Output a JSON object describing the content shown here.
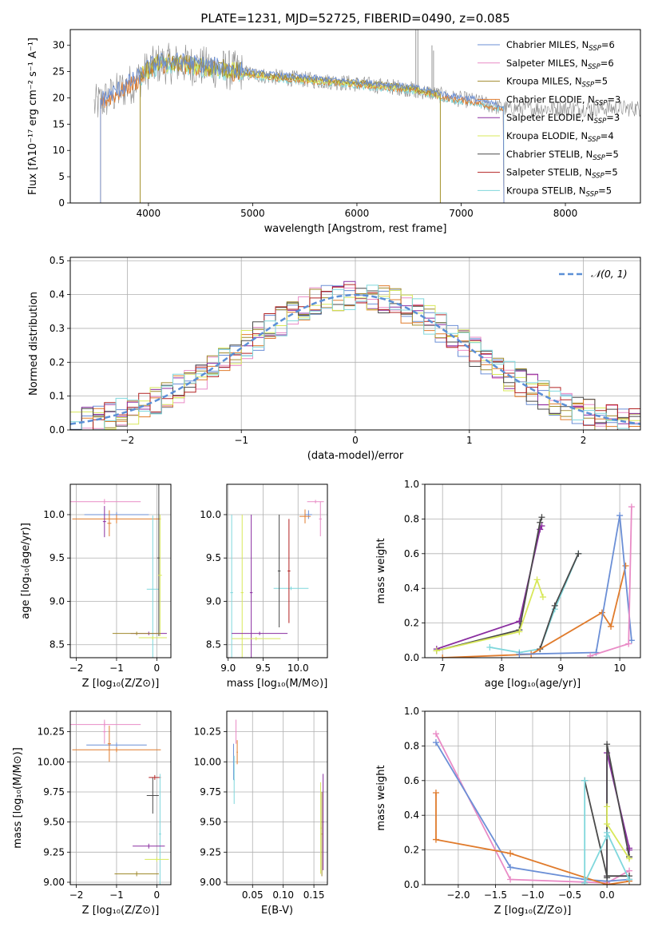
{
  "figure_title": "PLATE=1231, MJD=52725, FIBERID=0490, z=0.085",
  "colors": {
    "Chabrier MILES": "#6b8fd6",
    "Salpeter MILES": "#e98bc6",
    "Kroupa MILES": "#a08a2c",
    "Chabrier ELODIE": "#e07b2c",
    "Salpeter ELODIE": "#8a2ea0",
    "Kroupa ELODIE": "#d8e85a",
    "Chabrier STELIB": "#4a4a4a",
    "Salpeter STELIB": "#b22222",
    "Kroupa STELIB": "#7fd7dc"
  },
  "chart_data": [
    {
      "id": "spectrum",
      "type": "line",
      "title": "PLATE=1231, MJD=52725, FIBERID=0490, z=0.085",
      "xlabel": "wavelength [Angstrom, rest frame]",
      "ylabel": "Flux [fλ10⁻¹⁷ erg cm⁻² s⁻¹ A⁻¹]",
      "xlim": [
        3250,
        8720
      ],
      "ylim": [
        0,
        33
      ],
      "xticks": [
        4000,
        5000,
        6000,
        7000,
        8000
      ],
      "yticks": [
        0,
        5,
        10,
        15,
        20,
        25,
        30
      ],
      "legend_position": "top-right",
      "legend": [
        {
          "label": "Chabrier MILES, N",
          "sub": "SSP",
          "suffix": "=6",
          "color": "#6b8fd6"
        },
        {
          "label": "Salpeter MILES, N",
          "sub": "SSP",
          "suffix": "=6",
          "color": "#e98bc6"
        },
        {
          "label": "Kroupa MILES, N",
          "sub": "SSP",
          "suffix": "=5",
          "color": "#a08a2c"
        },
        {
          "label": "Chabrier ELODIE, N",
          "sub": "SSP",
          "suffix": "=3",
          "color": "#e07b2c"
        },
        {
          "label": "Salpeter ELODIE, N",
          "sub": "SSP",
          "suffix": "=3",
          "color": "#8a2ea0"
        },
        {
          "label": "Kroupa ELODIE, N",
          "sub": "SSP",
          "suffix": "=4",
          "color": "#d8e85a"
        },
        {
          "label": "Chabrier STELIB, N",
          "sub": "SSP",
          "suffix": "=5",
          "color": "#4a4a4a"
        },
        {
          "label": "Salpeter STELIB, N",
          "sub": "SSP",
          "suffix": "=5",
          "color": "#b22222"
        },
        {
          "label": "Kroupa STELIB, N",
          "sub": "SSP",
          "suffix": "=5",
          "color": "#7fd7dc"
        }
      ],
      "continuum": {
        "x": [
          3480,
          3700,
          3900,
          4000,
          4100,
          4300,
          4500,
          4700,
          4850,
          5000,
          5200,
          5500,
          5800,
          6100,
          6400,
          6560,
          6700,
          6900,
          7100,
          7300,
          7430
        ],
        "y": [
          18.5,
          21,
          23.5,
          25.5,
          26.5,
          26.5,
          26,
          25.5,
          25,
          24.5,
          24,
          23.5,
          23,
          22.5,
          22,
          21.5,
          21,
          20,
          19.5,
          18.5,
          18
        ]
      },
      "model_extents": [
        {
          "label": "MILES",
          "xmin": 3540,
          "xmax": 7410
        },
        {
          "label": "ELODIE",
          "xmin": 3920,
          "xmax": 6800
        },
        {
          "label": "STELIB",
          "xmin": 3250,
          "xmax": 8720
        }
      ]
    },
    {
      "id": "residuals",
      "type": "histogram",
      "xlabel": "(data-model)/error",
      "ylabel": "Normed distribution",
      "xlim": [
        -2.5,
        2.5
      ],
      "ylim": [
        0,
        0.51
      ],
      "xticks": [
        -2,
        -1,
        0,
        1,
        2
      ],
      "yticks": [
        0.0,
        0.1,
        0.2,
        0.3,
        0.4,
        0.5
      ],
      "reference_curve": {
        "name": "𝒩(0, 1)",
        "color": "#5b8fd6",
        "style": "dashed"
      },
      "bin_width": 0.1
    },
    {
      "id": "age-vs-Z",
      "type": "errorbar",
      "xlabel": "Z [log₁₀(Z/Z⊙)]",
      "ylabel": "age  [log₁₀(age/yr)]",
      "xlim": [
        -2.15,
        0.35
      ],
      "ylim": [
        8.35,
        10.35
      ],
      "xticks": [
        -2,
        -1,
        0
      ],
      "yticks": [
        8.5,
        9.0,
        9.5,
        10.0
      ],
      "points": [
        {
          "series": "Salpeter MILES",
          "x": -1.3,
          "y": 10.15,
          "xerr": 0.9,
          "yerr": 0.03
        },
        {
          "series": "Chabrier MILES",
          "x": -1.0,
          "y": 10.0,
          "xerr": 0.8,
          "yerr": 0.03
        },
        {
          "series": "Chabrier ELODIE",
          "x": -1.0,
          "y": 9.95,
          "xerr": 1.1,
          "yerr": 0.05
        },
        {
          "series": "Chabrier ELODIE",
          "x": -1.18,
          "y": 9.9,
          "xerr": 0.05,
          "yerr": 0.15
        },
        {
          "series": "Salpeter ELODIE",
          "x": -1.3,
          "y": 9.92,
          "xerr": 0.04,
          "yerr": 0.18
        },
        {
          "series": "Kroupa STELIB",
          "x": -0.1,
          "y": 9.14,
          "xerr": 0.15,
          "yerr": 0.85
        },
        {
          "series": "Chabrier STELIB",
          "x": 0.05,
          "y": 9.5,
          "xerr": 0.04,
          "yerr": 0.9
        },
        {
          "series": "Kroupa ELODIE",
          "x": 0.08,
          "y": 9.3,
          "xerr": 0.05,
          "yerr": 0.7
        },
        {
          "series": "Salpeter ELODIE",
          "x": -0.2,
          "y": 8.63,
          "xerr": 0.45,
          "yerr": 0.02
        },
        {
          "series": "Kroupa MILES",
          "x": -0.5,
          "y": 8.63,
          "xerr": 0.6,
          "yerr": 0.02
        },
        {
          "series": "Kroupa ELODIE",
          "x": -0.1,
          "y": 8.58,
          "xerr": 0.35,
          "yerr": 0.02
        }
      ]
    },
    {
      "id": "age-vs-mass",
      "type": "errorbar",
      "xlabel": "mass [log₁₀(M/M⊙)]",
      "xlim": [
        8.98,
        10.42
      ],
      "ylim": [
        8.35,
        10.35
      ],
      "xticks": [
        9.0,
        9.5,
        10.0
      ],
      "yticks": [
        8.5,
        9.0,
        9.5,
        10.0
      ],
      "points": [
        {
          "series": "Salpeter MILES",
          "x": 10.25,
          "y": 10.15,
          "xerr": 0.12,
          "yerr": 0.02
        },
        {
          "series": "Chabrier MILES",
          "x": 10.15,
          "y": 10.0,
          "xerr": 0.05,
          "yerr": 0.05
        },
        {
          "series": "Chabrier ELODIE",
          "x": 10.1,
          "y": 9.98,
          "xerr": 0.08,
          "yerr": 0.08
        },
        {
          "series": "Salpeter MILES",
          "x": 10.32,
          "y": 9.95,
          "xerr": 0.02,
          "yerr": 0.2
        },
        {
          "series": "Kroupa STELIB",
          "x": 9.9,
          "y": 9.15,
          "xerr": 0.25,
          "yerr": 0.02
        },
        {
          "series": "Chabrier STELIB",
          "x": 9.73,
          "y": 9.35,
          "xerr": 0.02,
          "yerr": 0.65
        },
        {
          "series": "Salpeter STELIB",
          "x": 9.87,
          "y": 9.35,
          "xerr": 0.02,
          "yerr": 0.6
        },
        {
          "series": "Kroupa STELIB",
          "x": 9.05,
          "y": 9.1,
          "xerr": 0.02,
          "yerr": 0.9
        },
        {
          "series": "Kroupa ELODIE",
          "x": 9.2,
          "y": 9.1,
          "xerr": 0.02,
          "yerr": 0.9
        },
        {
          "series": "Salpeter ELODIE",
          "x": 9.33,
          "y": 9.1,
          "xerr": 0.02,
          "yerr": 0.9
        },
        {
          "series": "Salpeter ELODIE",
          "x": 9.45,
          "y": 8.63,
          "xerr": 0.4,
          "yerr": 0.02
        },
        {
          "series": "Kroupa ELODIE",
          "x": 9.4,
          "y": 8.57,
          "xerr": 0.35,
          "yerr": 0.02
        }
      ]
    },
    {
      "id": "weight-vs-age",
      "type": "line",
      "xlabel": "age  [log₁₀(age/yr)]",
      "ylabel": "mass weight",
      "xlim": [
        6.7,
        10.35
      ],
      "ylim": [
        0,
        1.0
      ],
      "xticks": [
        7,
        8,
        9,
        10
      ],
      "yticks": [
        0.0,
        0.2,
        0.4,
        0.6,
        0.8,
        1.0
      ],
      "series": [
        {
          "name": "Salpeter ELODIE",
          "x": [
            6.9,
            8.3,
            8.65,
            8.68
          ],
          "y": [
            0.05,
            0.21,
            0.74,
            0.76
          ]
        },
        {
          "name": "Chabrier STELIB",
          "x": [
            6.9,
            8.3,
            8.65,
            8.68
          ],
          "y": [
            0.04,
            0.16,
            0.78,
            0.81
          ]
        },
        {
          "name": "Kroupa ELODIE",
          "x": [
            6.9,
            8.3,
            8.6,
            8.7
          ],
          "y": [
            0.04,
            0.15,
            0.45,
            0.35
          ]
        },
        {
          "name": "Kroupa STELIB",
          "x": [
            7.8,
            8.3,
            8.65,
            8.9,
            9.3
          ],
          "y": [
            0.06,
            0.03,
            0.05,
            0.28,
            0.6
          ]
        },
        {
          "name": "Chabrier STELIB",
          "x": [
            8.65,
            8.9,
            9.3
          ],
          "y": [
            0.05,
            0.3,
            0.6
          ]
        },
        {
          "name": "Chabrier ELODIE",
          "x": [
            7.0,
            8.5,
            9.7,
            9.85,
            10.1
          ],
          "y": [
            0.0,
            0.02,
            0.26,
            0.18,
            0.53
          ]
        },
        {
          "name": "Chabrier MILES",
          "x": [
            8.3,
            9.6,
            10.0,
            10.2
          ],
          "y": [
            0.02,
            0.03,
            0.82,
            0.1
          ]
        },
        {
          "name": "Salpeter MILES",
          "x": [
            9.5,
            10.15,
            10.2
          ],
          "y": [
            0.01,
            0.08,
            0.87
          ]
        }
      ]
    },
    {
      "id": "mass-vs-Z",
      "type": "errorbar",
      "xlabel": "Z [log₁₀(Z/Z⊙)]",
      "ylabel": "mass [log₁₀(M/M⊙)]",
      "xlim": [
        -2.15,
        0.35
      ],
      "ylim": [
        8.98,
        10.42
      ],
      "xticks": [
        -2,
        -1,
        0
      ],
      "yticks": [
        9.0,
        9.25,
        9.5,
        9.75,
        10.0,
        10.25
      ],
      "points": [
        {
          "series": "Salpeter MILES",
          "x": -1.3,
          "y": 10.31,
          "xerr": 0.9,
          "yerr": 0.02
        },
        {
          "series": "Chabrier MILES",
          "x": -1.0,
          "y": 10.14,
          "xerr": 0.75,
          "yerr": 0.02
        },
        {
          "series": "Chabrier ELODIE",
          "x": -1.0,
          "y": 10.1,
          "xerr": 1.1,
          "yerr": 0.02
        },
        {
          "series": "Chabrier ELODIE",
          "x": -1.18,
          "y": 10.15,
          "xerr": 0.04,
          "yerr": 0.15
        },
        {
          "series": "Salpeter MILES",
          "x": -1.3,
          "y": 10.25,
          "xerr": 0.04,
          "yerr": 0.1
        },
        {
          "series": "Chabrier STELIB",
          "x": -0.1,
          "y": 9.72,
          "xerr": 0.15,
          "yerr": 0.15
        },
        {
          "series": "Salpeter STELIB",
          "x": -0.05,
          "y": 9.87,
          "xerr": 0.15,
          "yerr": 0.02
        },
        {
          "series": "Kroupa STELIB",
          "x": 0.08,
          "y": 9.4,
          "xerr": 0.03,
          "yerr": 0.5
        },
        {
          "series": "Salpeter ELODIE",
          "x": -0.2,
          "y": 9.3,
          "xerr": 0.4,
          "yerr": 0.02
        },
        {
          "series": "Kroupa ELODIE",
          "x": 0.0,
          "y": 9.19,
          "xerr": 0.3,
          "yerr": 0.02
        },
        {
          "series": "Kroupa MILES",
          "x": -0.5,
          "y": 9.07,
          "xerr": 0.55,
          "yerr": 0.02
        }
      ]
    },
    {
      "id": "mass-vs-EBV",
      "type": "errorbar",
      "xlabel": "E(B-V)",
      "xlim": [
        0.008,
        0.172
      ],
      "ylim": [
        8.98,
        10.42
      ],
      "xticks": [
        0.05,
        0.1,
        0.15
      ],
      "yticks": [
        9.0,
        9.25,
        9.5,
        9.75,
        10.0,
        10.25
      ],
      "points": [
        {
          "series": "Salpeter MILES",
          "x": 0.023,
          "y": 10.25,
          "xerr": 0.001,
          "yerr": 0.1
        },
        {
          "series": "Chabrier ELODIE",
          "x": 0.025,
          "y": 10.08,
          "xerr": 0.001,
          "yerr": 0.1
        },
        {
          "series": "Chabrier MILES",
          "x": 0.019,
          "y": 10.0,
          "xerr": 0.001,
          "yerr": 0.15
        },
        {
          "series": "Kroupa STELIB",
          "x": 0.02,
          "y": 9.85,
          "xerr": 0.001,
          "yerr": 0.2
        },
        {
          "series": "Salpeter ELODIE",
          "x": 0.165,
          "y": 9.5,
          "xerr": 0.001,
          "yerr": 0.4
        },
        {
          "series": "Kroupa ELODIE",
          "x": 0.161,
          "y": 9.45,
          "xerr": 0.001,
          "yerr": 0.38
        },
        {
          "series": "Kroupa MILES",
          "x": 0.163,
          "y": 9.4,
          "xerr": 0.001,
          "yerr": 0.35
        }
      ]
    },
    {
      "id": "weight-vs-Z",
      "type": "line",
      "xlabel": "Z [log₁₀(Z/Z⊙)]",
      "ylabel": "mass weight",
      "xlim": [
        -2.45,
        0.45
      ],
      "ylim": [
        0,
        1.0
      ],
      "xticks": [
        -2.0,
        -1.5,
        -1.0,
        -0.5,
        0.0
      ],
      "yticks": [
        0.0,
        0.2,
        0.4,
        0.6,
        0.8,
        1.0
      ],
      "series": [
        {
          "name": "Salpeter MILES",
          "x": [
            -2.3,
            -1.3,
            0.0,
            0.3
          ],
          "y": [
            0.87,
            0.03,
            0.01,
            0.08
          ]
        },
        {
          "name": "Chabrier MILES",
          "x": [
            -2.3,
            -1.3,
            -0.3,
            0.0,
            0.3
          ],
          "y": [
            0.82,
            0.1,
            0.03,
            0.02,
            0.03
          ]
        },
        {
          "name": "Chabrier ELODIE",
          "x": [
            -2.3,
            -2.3,
            -1.3,
            0.0,
            0.3
          ],
          "y": [
            0.53,
            0.26,
            0.18,
            0.0,
            0.02
          ]
        },
        {
          "name": "Salpeter ELODIE",
          "x": [
            0.0,
            0.0,
            0.3,
            0.3
          ],
          "y": [
            0.05,
            0.76,
            0.21,
            0.2
          ]
        },
        {
          "name": "Chabrier STELIB",
          "x": [
            0.0,
            0.0,
            0.3,
            0.3
          ],
          "y": [
            0.04,
            0.81,
            0.16,
            0.16
          ]
        },
        {
          "name": "Kroupa ELODIE",
          "x": [
            0.0,
            0.0,
            0.3
          ],
          "y": [
            0.45,
            0.35,
            0.15
          ]
        },
        {
          "name": "Chabrier STELIB",
          "x": [
            -0.3,
            0.0,
            0.3,
            0.3
          ],
          "y": [
            0.6,
            0.05,
            0.05,
            0.03
          ]
        },
        {
          "name": "Kroupa STELIB",
          "x": [
            -0.3,
            -0.3,
            0.0,
            0.0,
            0.3
          ],
          "y": [
            0.6,
            0.01,
            0.28,
            0.3,
            0.03
          ]
        }
      ]
    }
  ]
}
